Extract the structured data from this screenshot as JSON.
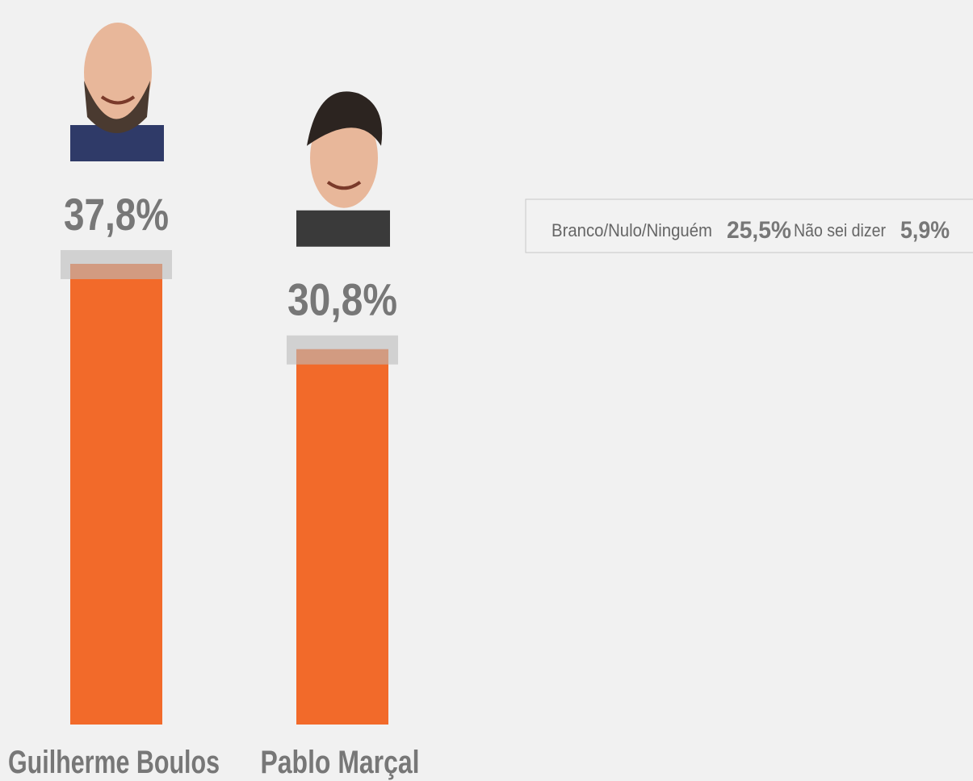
{
  "chart_data": {
    "type": "bar",
    "categories": [
      "Guilherme Boulos",
      "Pablo Marçal"
    ],
    "values": [
      37.8,
      30.8
    ],
    "value_labels": [
      "37,8%",
      "30,8%"
    ],
    "color": "#f26a2a",
    "others": [
      {
        "name": "Branco/Nulo/Ninguém",
        "value": 25.5,
        "value_label": "25,5%"
      },
      {
        "name": "Não sei dizer",
        "value": 5.9,
        "value_label": "5,9%"
      }
    ]
  }
}
